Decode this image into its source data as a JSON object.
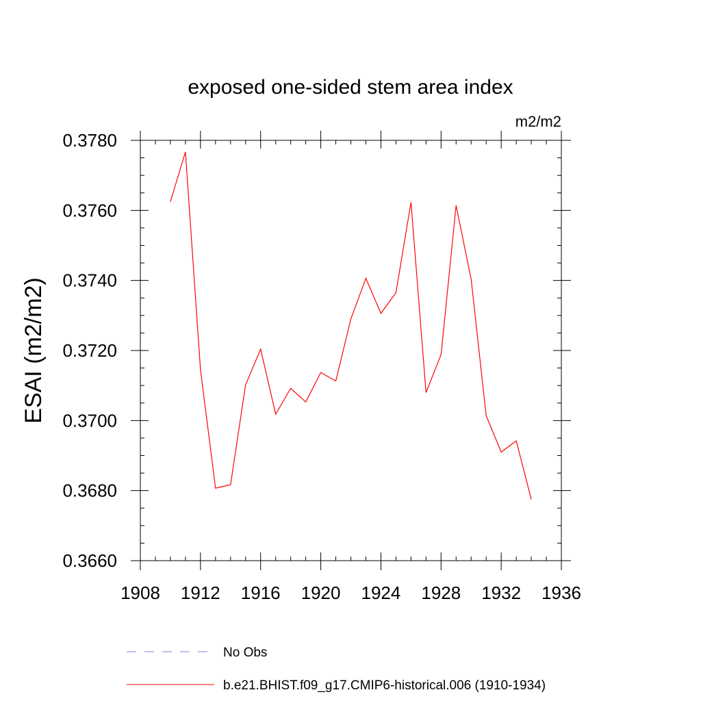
{
  "chart_data": {
    "type": "line",
    "title": "exposed one-sided stem area index",
    "units_label": "m2/m2",
    "ylabel": "ESAI  (m2/m2)",
    "xlabel": "",
    "xlim": [
      1908,
      1936
    ],
    "ylim": [
      0.366,
      0.378
    ],
    "x_ticks": [
      1908,
      1912,
      1916,
      1920,
      1924,
      1928,
      1932,
      1936
    ],
    "x_tick_labels": [
      "1908",
      "1912",
      "1916",
      "1920",
      "1924",
      "1928",
      "1932",
      "1936"
    ],
    "y_ticks": [
      0.366,
      0.368,
      0.37,
      0.372,
      0.374,
      0.376,
      0.378
    ],
    "y_tick_labels": [
      "0.3660",
      "0.3680",
      "0.3700",
      "0.3720",
      "0.3740",
      "0.3760",
      "0.3780"
    ],
    "x_minor_step": 1,
    "y_minor_step": 0.0005,
    "grid": false,
    "legend_position": "bottom",
    "series": [
      {
        "name": "b.e21.BHIST.f09_g17.CMIP6-historical.006 (1910-1934)",
        "color": "#ff0000",
        "style": "solid",
        "x": [
          1910,
          1911,
          1912,
          1913,
          1914,
          1915,
          1916,
          1917,
          1918,
          1919,
          1920,
          1921,
          1922,
          1923,
          1924,
          1925,
          1926,
          1927,
          1928,
          1929,
          1930,
          1931,
          1932,
          1933,
          1934
        ],
        "y": [
          0.37625,
          0.37767,
          0.37145,
          0.36807,
          0.36817,
          0.37102,
          0.37204,
          0.37018,
          0.37092,
          0.37053,
          0.37137,
          0.37113,
          0.3729,
          0.37406,
          0.37306,
          0.37365,
          0.37623,
          0.3708,
          0.37188,
          0.37614,
          0.37404,
          0.37014,
          0.3691,
          0.36942,
          0.36775
        ]
      }
    ],
    "legend": [
      {
        "label": "No Obs",
        "color": "#7f7fd6",
        "style": "dashed"
      },
      {
        "label": "b.e21.BHIST.f09_g17.CMIP6-historical.006 (1910-1934)",
        "color": "#ff0000",
        "style": "solid"
      }
    ]
  }
}
